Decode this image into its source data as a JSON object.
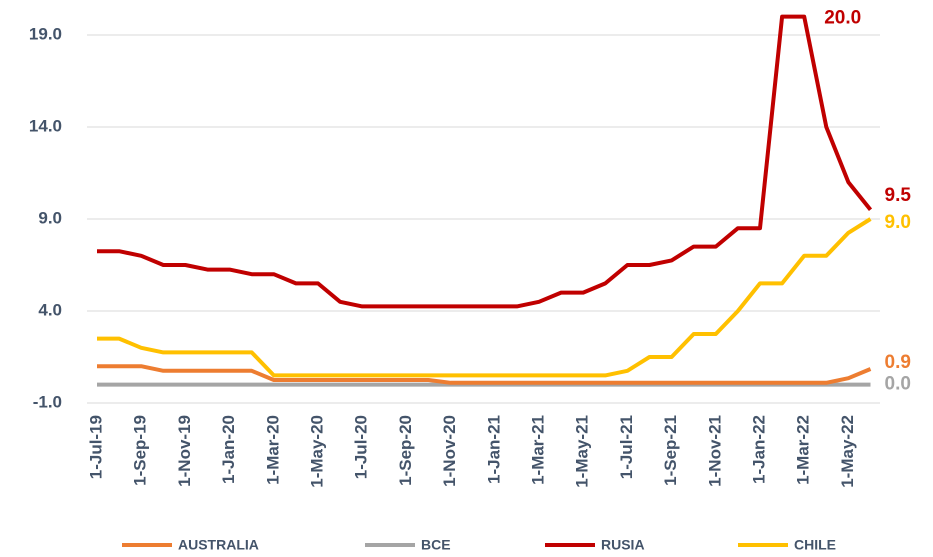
{
  "chart_data": {
    "type": "line",
    "categories": [
      "1-Jul-19",
      null,
      "1-Sep-19",
      null,
      "1-Nov-19",
      null,
      "1-Jan-20",
      null,
      "1-Mar-20",
      null,
      "1-May-20",
      null,
      "1-Jul-20",
      null,
      "1-Sep-20",
      null,
      "1-Nov-20",
      null,
      "1-Jan-21",
      null,
      "1-Mar-21",
      null,
      "1-May-21",
      null,
      "1-Jul-21",
      null,
      "1-Sep-21",
      null,
      "1-Nov-21",
      null,
      "1-Jan-22",
      null,
      "1-Mar-22",
      null,
      "1-May-22",
      null
    ],
    "series": [
      {
        "name": "AUSTRALIA",
        "color": "#ed7d31",
        "values": [
          1.0,
          1.0,
          1.0,
          0.75,
          0.75,
          0.75,
          0.75,
          0.75,
          0.25,
          0.25,
          0.25,
          0.25,
          0.25,
          0.25,
          0.25,
          0.25,
          0.1,
          0.1,
          0.1,
          0.1,
          0.1,
          0.1,
          0.1,
          0.1,
          0.1,
          0.1,
          0.1,
          0.1,
          0.1,
          0.1,
          0.1,
          0.1,
          0.1,
          0.1,
          0.35,
          0.85
        ],
        "value_labels": [
          null,
          null,
          null,
          null,
          null,
          null,
          null,
          null,
          null,
          null,
          null,
          null,
          null,
          null,
          null,
          null,
          null,
          null,
          null,
          null,
          null,
          null,
          null,
          null,
          null,
          null,
          null,
          null,
          null,
          null,
          null,
          null,
          null,
          null,
          null,
          "0.9"
        ]
      },
      {
        "name": "BCE",
        "color": "#a5a5a5",
        "values": [
          0,
          0,
          0,
          0,
          0,
          0,
          0,
          0,
          0,
          0,
          0,
          0,
          0,
          0,
          0,
          0,
          0,
          0,
          0,
          0,
          0,
          0,
          0,
          0,
          0,
          0,
          0,
          0,
          0,
          0,
          0,
          0,
          0,
          0,
          0,
          0
        ],
        "value_labels": [
          null,
          null,
          null,
          null,
          null,
          null,
          null,
          null,
          null,
          null,
          null,
          null,
          null,
          null,
          null,
          null,
          null,
          null,
          null,
          null,
          null,
          null,
          null,
          null,
          null,
          null,
          null,
          null,
          null,
          null,
          null,
          null,
          null,
          null,
          null,
          "0.0"
        ]
      },
      {
        "name": "RUSIA",
        "color": "#c00000",
        "values": [
          7.25,
          7.25,
          7.0,
          6.5,
          6.5,
          6.25,
          6.25,
          6.0,
          6.0,
          5.5,
          5.5,
          4.5,
          4.25,
          4.25,
          4.25,
          4.25,
          4.25,
          4.25,
          4.25,
          4.25,
          4.5,
          5.0,
          5.0,
          5.5,
          6.5,
          6.5,
          6.75,
          7.5,
          7.5,
          8.5,
          8.5,
          20.0,
          20.0,
          14.0,
          11.0,
          9.5
        ],
        "value_labels": [
          null,
          null,
          null,
          null,
          null,
          null,
          null,
          null,
          null,
          null,
          null,
          null,
          null,
          null,
          null,
          null,
          null,
          null,
          null,
          null,
          null,
          null,
          null,
          null,
          null,
          null,
          null,
          null,
          null,
          null,
          null,
          null,
          "20.0",
          null,
          null,
          "9.5"
        ]
      },
      {
        "name": "CHILE",
        "color": "#ffc000",
        "values": [
          2.5,
          2.5,
          2.0,
          1.75,
          1.75,
          1.75,
          1.75,
          1.75,
          0.5,
          0.5,
          0.5,
          0.5,
          0.5,
          0.5,
          0.5,
          0.5,
          0.5,
          0.5,
          0.5,
          0.5,
          0.5,
          0.5,
          0.5,
          0.5,
          0.75,
          1.5,
          1.5,
          2.75,
          2.75,
          4.0,
          5.5,
          5.5,
          7.0,
          7.0,
          8.25,
          9.0
        ],
        "value_labels": [
          null,
          null,
          null,
          null,
          null,
          null,
          null,
          null,
          null,
          null,
          null,
          null,
          null,
          null,
          null,
          null,
          null,
          null,
          null,
          null,
          null,
          null,
          null,
          null,
          null,
          null,
          null,
          null,
          null,
          null,
          null,
          null,
          null,
          null,
          null,
          "9.0"
        ]
      }
    ],
    "ylim": [
      -1,
      20
    ],
    "yticks": [
      {
        "value": -1,
        "label": "-1.0"
      },
      {
        "value": 4,
        "label": "4.0"
      },
      {
        "value": 9,
        "label": "9.0"
      },
      {
        "value": 14,
        "label": "14.0"
      },
      {
        "value": 19,
        "label": "19.0"
      }
    ],
    "grid": true,
    "legend": "bottom"
  }
}
